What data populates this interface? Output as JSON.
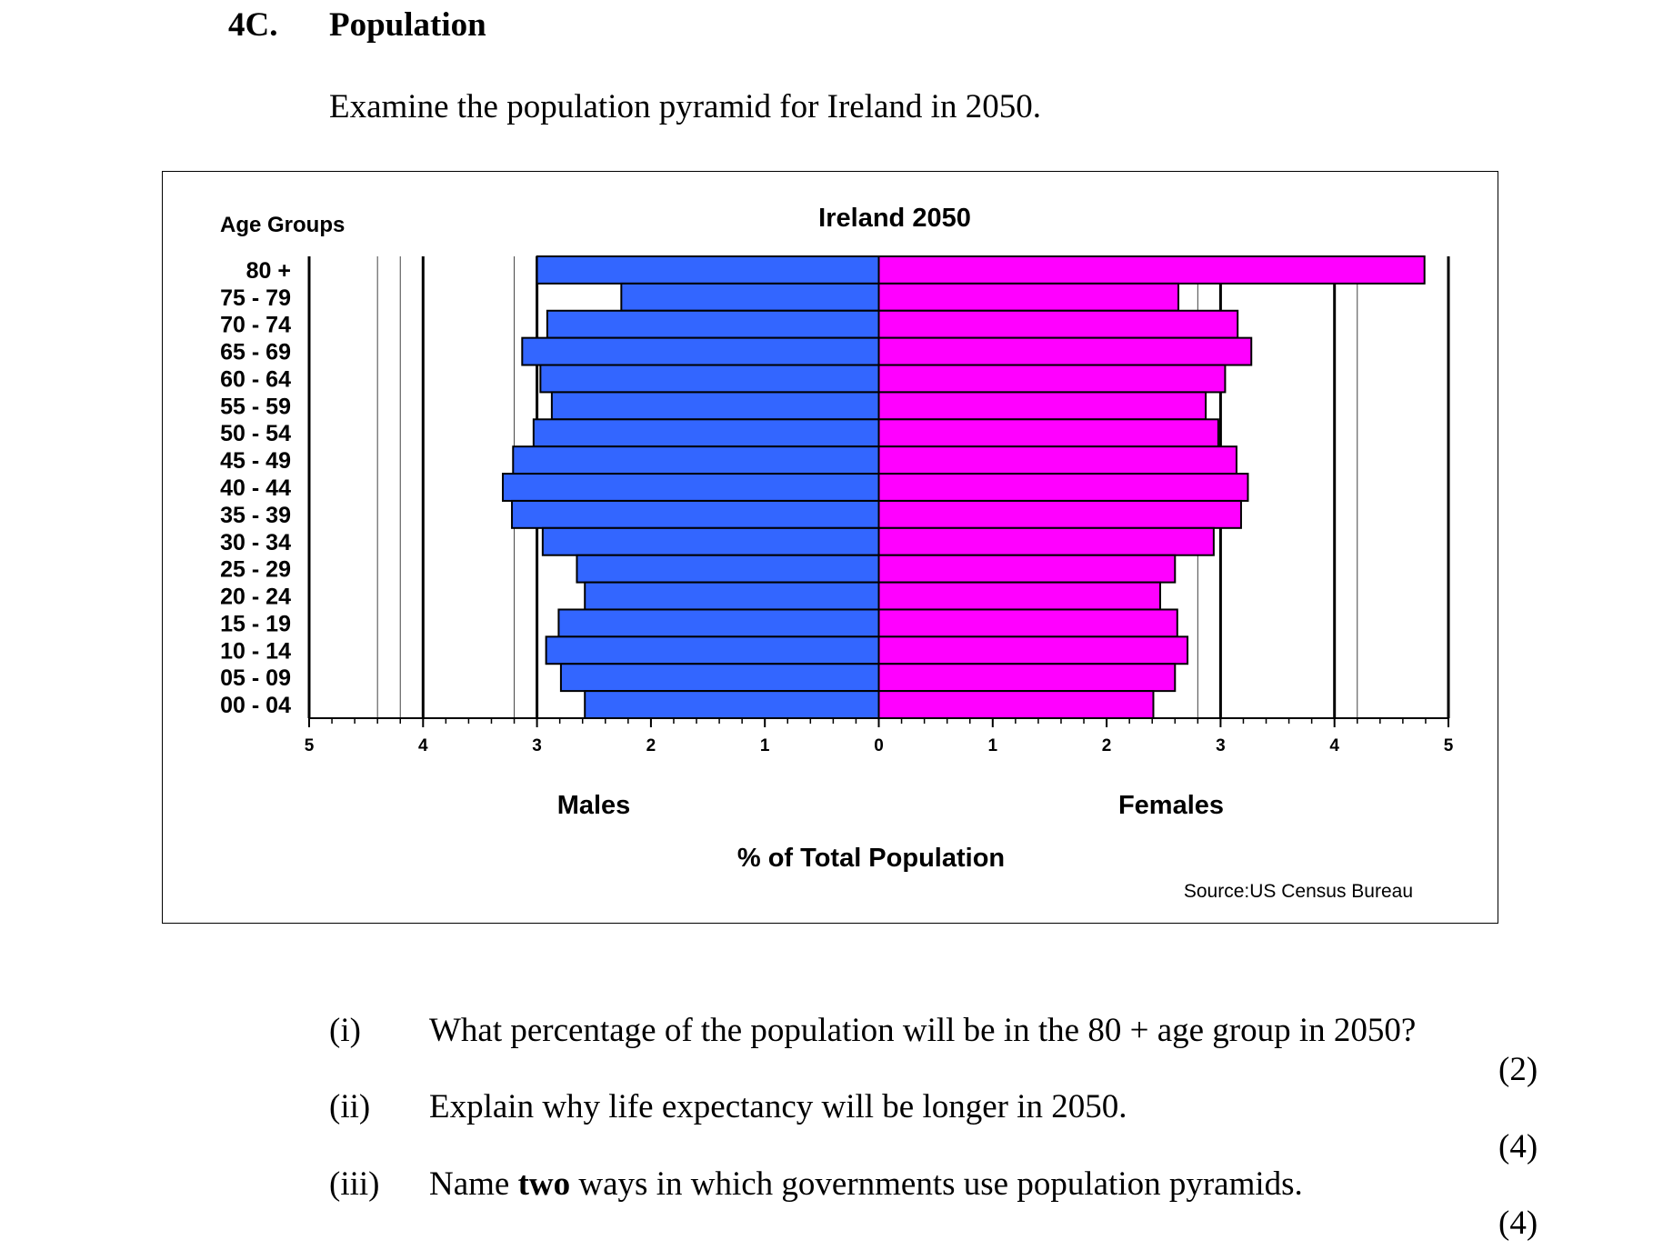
{
  "question": {
    "number": "4C.",
    "title": "Population",
    "instruction": "Examine the population pyramid for Ireland in 2050."
  },
  "chart_data": {
    "type": "bar",
    "orientation": "horizontal-population-pyramid",
    "title": "Ireland 2050",
    "y_axis_title": "Age Groups",
    "xlabel": "% of Total Population",
    "left_label": "Males",
    "right_label": "Females",
    "source": "Source:US Census Bureau",
    "xlim": [
      -5,
      5
    ],
    "x_ticks": [
      "5",
      "4",
      "3",
      "2",
      "1",
      "0",
      "1",
      "2",
      "3",
      "4",
      "5"
    ],
    "categories": [
      "80 +",
      "75 - 79",
      "70 - 74",
      "65 - 69",
      "60 - 64",
      "55 - 59",
      "50 - 54",
      "45 - 49",
      "40 - 44",
      "35 - 39",
      "30 - 34",
      "25 - 29",
      "20 - 24",
      "15 - 19",
      "10 - 14",
      "05 - 09",
      "00 - 04"
    ],
    "series": [
      {
        "name": "Males",
        "color": "#3366ff",
        "values": [
          3.0,
          2.26,
          2.91,
          3.13,
          2.97,
          2.87,
          3.03,
          3.21,
          3.3,
          3.22,
          2.95,
          2.65,
          2.58,
          2.81,
          2.92,
          2.79,
          2.58
        ]
      },
      {
        "name": "Females",
        "color": "#ff00ff",
        "values": [
          4.79,
          2.63,
          3.15,
          3.27,
          3.04,
          2.87,
          2.98,
          3.14,
          3.24,
          3.18,
          2.94,
          2.6,
          2.47,
          2.62,
          2.71,
          2.6,
          2.41
        ]
      }
    ]
  },
  "questions": [
    {
      "num": "(i)",
      "text": "What percentage of the population will be in the 80 + age group in 2050?",
      "mark": "(2)"
    },
    {
      "num": "(ii)",
      "text": "Explain why life expectancy will be longer in 2050.",
      "mark": "(4)"
    },
    {
      "num": "(iii)",
      "text_before": "Name ",
      "text_bold": "two",
      "text_after": " ways in which governments use population pyramids.",
      "mark": "(4)"
    }
  ]
}
